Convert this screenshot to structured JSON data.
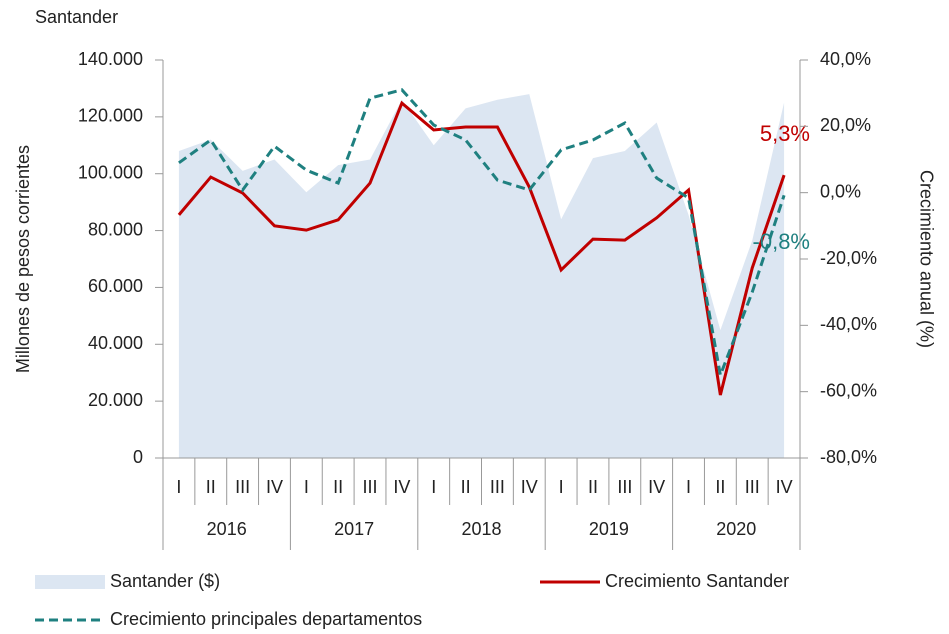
{
  "chart_data": {
    "type": "line",
    "title": "Santander",
    "ylabel": "Millones de pesos corrientes",
    "y2label": "Crecimiento anual (%)",
    "categories": [
      "I",
      "II",
      "III",
      "IV",
      "I",
      "II",
      "III",
      "IV",
      "I",
      "II",
      "III",
      "IV",
      "I",
      "II",
      "III",
      "IV",
      "I",
      "II",
      "III",
      "IV"
    ],
    "groups": [
      "2016",
      "2017",
      "2018",
      "2019",
      "2020"
    ],
    "ylim": [
      0,
      140000
    ],
    "yticks": [
      0,
      {
        "value": 20000,
        "label": "20.000"
      },
      {
        "value": 40000,
        "label": "40.000"
      },
      {
        "value": 60000,
        "label": "60.000"
      },
      {
        "value": 80000,
        "label": "80.000"
      },
      {
        "value": 100000,
        "label": "100.000"
      },
      {
        "value": 120000,
        "label": "120.000"
      },
      {
        "value": 140000,
        "label": "140.000"
      }
    ],
    "y2lim": [
      -80,
      40
    ],
    "y2ticks": [
      {
        "value": -80,
        "label": "-80,0%"
      },
      {
        "value": -60,
        "label": "-60,0%"
      },
      {
        "value": -40,
        "label": "-40,0%"
      },
      {
        "value": -20,
        "label": "-20,0%"
      },
      {
        "value": 0,
        "label": "0,0%"
      },
      {
        "value": 20,
        "label": "20,0%"
      },
      {
        "value": 40,
        "label": "40,0%"
      }
    ],
    "series": [
      {
        "name": "Santander ($)",
        "kind": "area",
        "color": "#dce6f2",
        "axis": "y",
        "values": [
          108000,
          112000,
          101000,
          105000,
          93500,
          103000,
          105000,
          126000,
          110000,
          123000,
          126000,
          128000,
          84000,
          105500,
          108000,
          118000,
          85500,
          45000,
          76500,
          125000
        ]
      },
      {
        "name": "Crecimiento Santander",
        "kind": "line",
        "color": "#c00000",
        "axis": "y2",
        "values": [
          -6.7,
          4.7,
          -0.1,
          -10,
          -11.3,
          -8.2,
          2.9,
          27,
          18.9,
          19.8,
          19.8,
          1.7,
          -23.3,
          -14,
          -14.3,
          -7.6,
          0.8,
          -61,
          -22.7,
          5.3
        ],
        "value_labels": [
          null,
          null,
          null,
          null,
          null,
          null,
          null,
          null,
          null,
          null,
          null,
          null,
          null,
          null,
          null,
          null,
          null,
          null,
          null,
          "5,3%"
        ]
      },
      {
        "name": "Crecimiento principales departamentos",
        "kind": "dashed",
        "color": "#1f8080",
        "axis": "y2",
        "values": [
          9,
          15.9,
          0.8,
          14,
          6.8,
          2.9,
          28.5,
          31,
          20.4,
          15.9,
          3.8,
          0.8,
          12.9,
          15.9,
          21,
          4.4,
          -1.6,
          -55,
          -30,
          -0.8
        ],
        "value_labels": [
          null,
          null,
          null,
          null,
          null,
          null,
          null,
          null,
          null,
          null,
          null,
          null,
          null,
          null,
          null,
          null,
          null,
          null,
          null,
          "-0,8%"
        ]
      }
    ]
  }
}
